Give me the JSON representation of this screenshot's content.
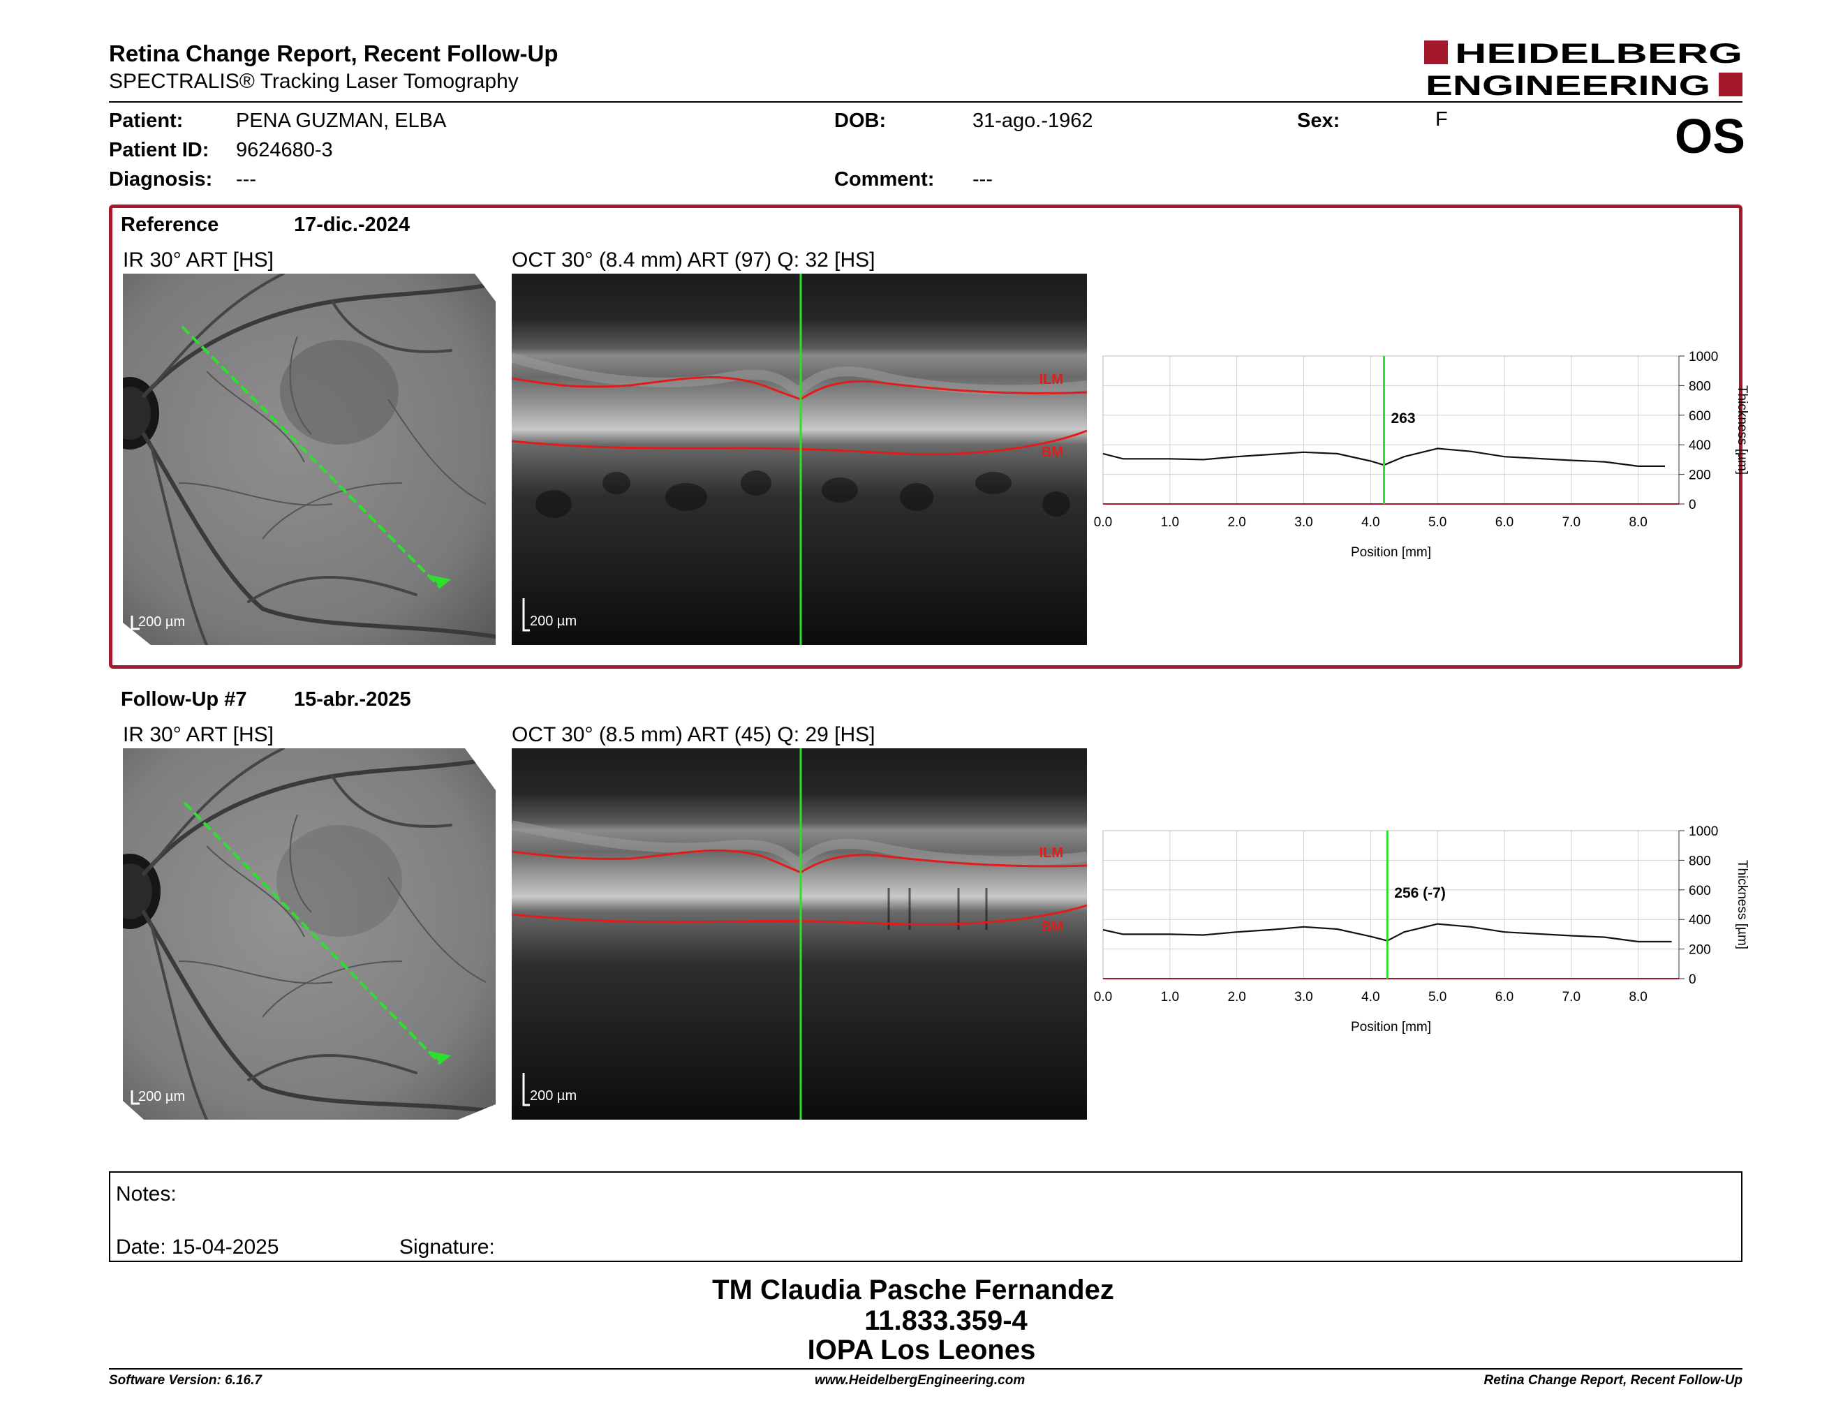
{
  "header": {
    "title": "Retina Change Report, Recent Follow-Up",
    "subtitle": "SPECTRALIS® Tracking Laser Tomography",
    "logo_line1": "HEIDELBERG",
    "logo_line2": "ENGINEERING",
    "eye": "OS"
  },
  "patient": {
    "patient_label": "Patient:",
    "patient_name": "PENA GUZMAN, ELBA",
    "id_label": "Patient ID:",
    "id": "9624680-3",
    "diagnosis_label": "Diagnosis:",
    "diagnosis": "---",
    "dob_label": "DOB:",
    "dob": "31-ago.-1962",
    "comment_label": "Comment:",
    "comment": "---",
    "sex_label": "Sex:",
    "sex": "F"
  },
  "reference": {
    "label": "Reference",
    "date": "17-dic.-2024",
    "ir_caption": "IR 30° ART [HS]",
    "oct_caption": "OCT 30° (8.4 mm) ART (97) Q: 32 [HS]",
    "ir_scale": "200 µm",
    "oct_scale": "200 µm",
    "ilm_label": "ILM",
    "bm_label": "BM"
  },
  "followup": {
    "label": "Follow-Up #7",
    "date": "15-abr.-2025",
    "ir_caption": "IR 30° ART [HS]",
    "oct_caption": "OCT 30° (8.5 mm) ART (45) Q: 29 [HS]",
    "ir_scale": "200 µm",
    "oct_scale": "200 µm",
    "ilm_label": "ILM",
    "bm_label": "BM"
  },
  "chart_data": [
    {
      "type": "line",
      "xlabel": "Position [mm]",
      "ylabel": "Thickness [µm]",
      "xlim": [
        0,
        8.4
      ],
      "ylim": [
        0,
        1000
      ],
      "xticks": [
        "0.0",
        "1.0",
        "2.0",
        "3.0",
        "4.0",
        "5.0",
        "6.0",
        "7.0",
        "8.0"
      ],
      "yticks": [
        "0",
        "200",
        "400",
        "600",
        "800",
        "1000"
      ],
      "grid": true,
      "marker_x": 4.2,
      "marker_label": "263",
      "series": [
        {
          "x": [
            0.0,
            0.3,
            1.0,
            1.5,
            2.0,
            2.5,
            3.0,
            3.5,
            4.0,
            4.2,
            4.5,
            5.0,
            5.5,
            6.0,
            7.0,
            7.5,
            8.0,
            8.4
          ],
          "values": [
            340,
            305,
            305,
            300,
            320,
            335,
            350,
            340,
            290,
            263,
            320,
            375,
            355,
            320,
            295,
            285,
            255,
            255
          ]
        }
      ]
    },
    {
      "type": "line",
      "xlabel": "Position [mm]",
      "ylabel": "Thickness [µm]",
      "xlim": [
        0,
        8.5
      ],
      "ylim": [
        0,
        1000
      ],
      "xticks": [
        "0.0",
        "1.0",
        "2.0",
        "3.0",
        "4.0",
        "5.0",
        "6.0",
        "7.0",
        "8.0"
      ],
      "yticks": [
        "0",
        "200",
        "400",
        "600",
        "800",
        "1000"
      ],
      "grid": true,
      "marker_x": 4.25,
      "marker_label": "256 (-7)",
      "series": [
        {
          "x": [
            0.0,
            0.3,
            1.0,
            1.5,
            2.0,
            2.5,
            3.0,
            3.5,
            4.0,
            4.25,
            4.5,
            5.0,
            5.5,
            6.0,
            7.0,
            7.5,
            8.0,
            8.5
          ],
          "values": [
            330,
            300,
            300,
            295,
            315,
            330,
            350,
            335,
            285,
            256,
            315,
            370,
            350,
            315,
            290,
            280,
            250,
            250
          ]
        }
      ]
    }
  ],
  "notes": {
    "notes_label": "Notes:",
    "date_label": "Date: 15-04-2025",
    "signature_label": "Signature:"
  },
  "signature_block": {
    "name": "TM Claudia Pasche Fernandez",
    "rut": "11.833.359-4",
    "institution": "IOPA Los Leones"
  },
  "footer": {
    "left": "Software Version: 6.16.7",
    "center": "www.HeidelbergEngineering.com",
    "right": "Retina Change Report, Recent Follow-Up"
  },
  "colors": {
    "brand_red": "#a3182a",
    "scan_green": "#2ee02e",
    "layer_red": "#e01c1c"
  }
}
